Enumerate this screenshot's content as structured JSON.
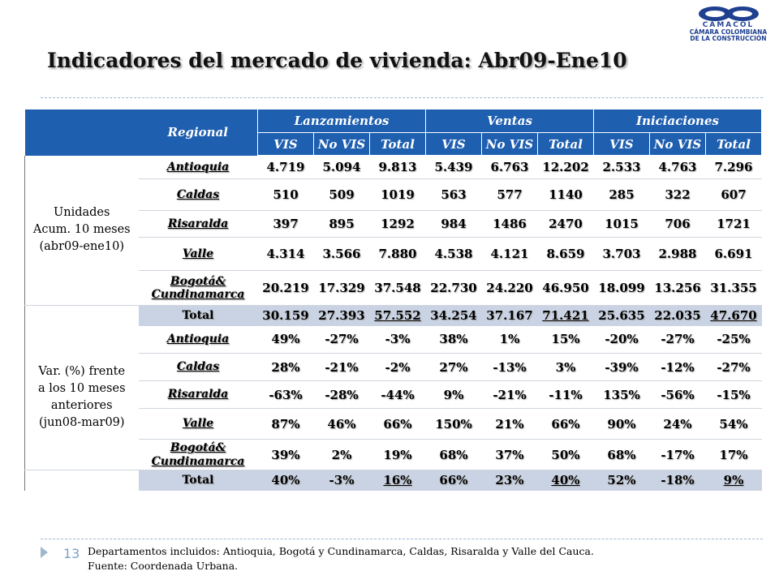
{
  "logo": {
    "brand": "CAMACOL",
    "line1": "CÁMARA COLOMBIANA",
    "line2": "DE LA CONSTRUCCIÓN"
  },
  "title": "Indicadores del mercado de vivienda:  Abr09-Ene10",
  "table": {
    "regional_header": "Regional",
    "groups": [
      "Lanzamientos",
      "Ventas",
      "Iniciaciones"
    ],
    "subheaders": [
      "VIS",
      "No VIS",
      "Total",
      "VIS",
      "No VIS",
      "Total",
      "VIS",
      "No VIS",
      "Total"
    ],
    "section1_label": [
      "Unidades",
      "Acum. 10 meses",
      "(abr09-ene10)"
    ],
    "section2_label": [
      "Var. (%) frente",
      "a los 10 meses",
      "anteriores",
      "(jun08-mar09)"
    ],
    "section1_rows": [
      {
        "region": [
          "Antioquia"
        ],
        "values": [
          "4.719",
          "5.094",
          "9.813",
          "5.439",
          "6.763",
          "12.202",
          "2.533",
          "4.763",
          "7.296"
        ]
      },
      {
        "region": [
          "Caldas"
        ],
        "values": [
          "510",
          "509",
          "1019",
          "563",
          "577",
          "1140",
          "285",
          "322",
          "607"
        ]
      },
      {
        "region": [
          "Risaralda"
        ],
        "values": [
          "397",
          "895",
          "1292",
          "984",
          "1486",
          "2470",
          "1015",
          "706",
          "1721"
        ]
      },
      {
        "region": [
          "Valle"
        ],
        "values": [
          "4.314",
          "3.566",
          "7.880",
          "4.538",
          "4.121",
          "8.659",
          "3.703",
          "2.988",
          "6.691"
        ]
      },
      {
        "region": [
          "Bogotá&",
          "Cundinamarca"
        ],
        "values": [
          "20.219",
          "17.329",
          "37.548",
          "22.730",
          "24.220",
          "46.950",
          "18.099",
          "13.256",
          "31.355"
        ]
      }
    ],
    "section1_total": {
      "label": "Total",
      "values": [
        "30.159",
        "27.393",
        "57.552",
        "34.254",
        "37.167",
        "71.421",
        "25.635",
        "22.035",
        "47.670"
      ]
    },
    "section2_rows": [
      {
        "region": [
          "Antioquia"
        ],
        "values": [
          "49%",
          "-27%",
          "-3%",
          "38%",
          "1%",
          "15%",
          "-20%",
          "-27%",
          "-25%"
        ]
      },
      {
        "region": [
          "Caldas"
        ],
        "values": [
          "28%",
          "-21%",
          "-2%",
          "27%",
          "-13%",
          "3%",
          "-39%",
          "-12%",
          "-27%"
        ]
      },
      {
        "region": [
          "Risaralda"
        ],
        "values": [
          "-63%",
          "-28%",
          "-44%",
          "9%",
          "-21%",
          "-11%",
          "135%",
          "-56%",
          "-15%"
        ]
      },
      {
        "region": [
          "Valle"
        ],
        "values": [
          "87%",
          "46%",
          "66%",
          "150%",
          "21%",
          "66%",
          "90%",
          "24%",
          "54%"
        ]
      },
      {
        "region": [
          "Bogotá&",
          "Cundinamarca"
        ],
        "values": [
          "39%",
          "2%",
          "19%",
          "68%",
          "37%",
          "50%",
          "68%",
          "-17%",
          "17%"
        ]
      }
    ],
    "section2_total": {
      "label": "Total",
      "values": [
        "40%",
        "-3%",
        "16%",
        "66%",
        "23%",
        "40%",
        "52%",
        "-18%",
        "9%"
      ]
    }
  },
  "slide_number": "13",
  "footnote": {
    "line1": "Departamentos incluidos: Antioquia, Bogotá y Cundinamarca, Caldas, Risaralda y Valle del Cauca.",
    "line2": "Fuente: Coordenada Urbana."
  },
  "colors": {
    "header_blue": "#1f5fb0",
    "total_row_bg": "#c9d3e3",
    "logo_blue": "#1f3f8f",
    "accent_line": "#9fb6cf"
  }
}
